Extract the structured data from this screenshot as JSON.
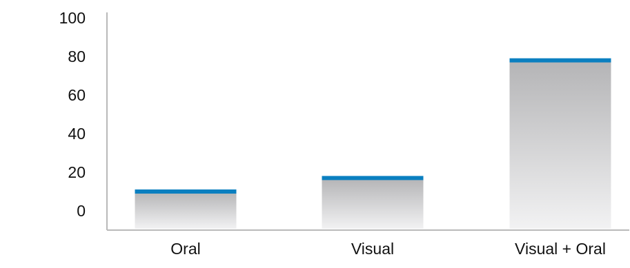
{
  "chart_data": {
    "type": "bar",
    "title": "",
    "xlabel": "",
    "ylabel": "",
    "categories": [
      "Oral",
      "Visual",
      "Visual + Oral"
    ],
    "values": [
      10,
      17,
      78
    ],
    "ylim": [
      -8,
      100
    ],
    "yticks": [
      0,
      20,
      40,
      60,
      80,
      100
    ],
    "ytick_labels": [
      "0",
      "20",
      "40",
      "60",
      "80",
      "100"
    ],
    "grid": false,
    "legend": "none",
    "colors": {
      "bar_top": "#0a7fc0",
      "bar_fill_top": "#b4b4b6",
      "bar_fill_bottom": "#f2f2f3",
      "axis": "#b9b9b9",
      "text": "#111111"
    }
  }
}
